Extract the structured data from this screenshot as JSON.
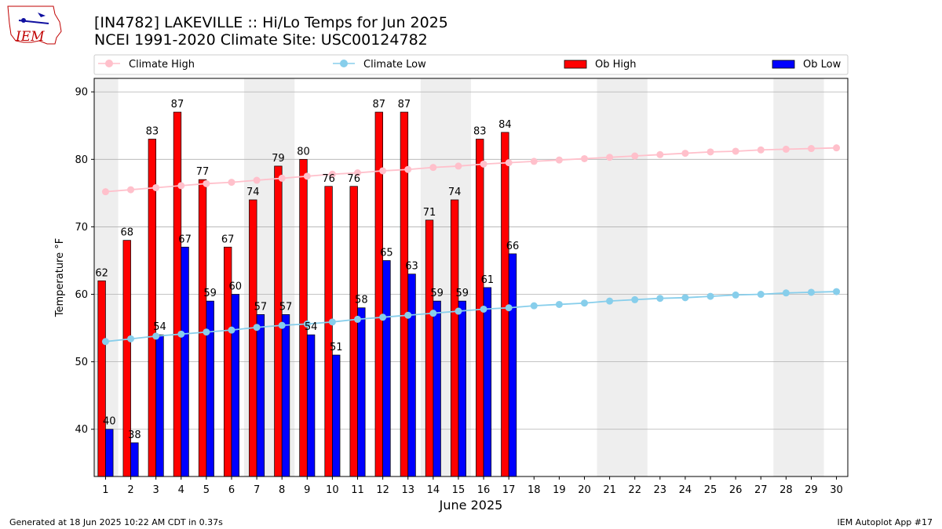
{
  "header": {
    "title_line1": "[IN4782] LAKEVILLE :: Hi/Lo Temps for Jun 2025",
    "title_line2": "NCEI 1991-2020 Climate Site: USC00124782",
    "logo_text": "IEM"
  },
  "footer": {
    "generated": "Generated at 18 Jun 2025 10:22 AM CDT in 0.37s",
    "app": "IEM Autoplot App #17"
  },
  "colors": {
    "ob_high": "#ff0000",
    "ob_low": "#0000ff",
    "climate_high": "#ffc0cb",
    "climate_low": "#87ceeb",
    "weekend_shade": "#eeeeee",
    "grid": "#b0b0b0"
  },
  "chart_data": {
    "type": "bar",
    "xlabel": "June 2025",
    "ylabel": "Temperature °F",
    "ylim": [
      33,
      92
    ],
    "yticks": [
      40,
      50,
      60,
      70,
      80,
      90
    ],
    "grid": "horizontal",
    "legend_position": "top",
    "days": [
      1,
      2,
      3,
      4,
      5,
      6,
      7,
      8,
      9,
      10,
      11,
      12,
      13,
      14,
      15,
      16,
      17,
      18,
      19,
      20,
      21,
      22,
      23,
      24,
      25,
      26,
      27,
      28,
      29,
      30
    ],
    "weekend_ranges": [
      [
        1,
        1
      ],
      [
        7,
        8
      ],
      [
        14,
        15
      ],
      [
        21,
        22
      ],
      [
        28,
        29
      ]
    ],
    "series": [
      {
        "name": "Climate High",
        "kind": "line",
        "values": [
          75.2,
          75.5,
          75.8,
          76.1,
          76.4,
          76.6,
          76.9,
          77.2,
          77.5,
          77.8,
          78.0,
          78.3,
          78.5,
          78.8,
          79.0,
          79.3,
          79.5,
          79.7,
          79.9,
          80.1,
          80.3,
          80.5,
          80.7,
          80.9,
          81.1,
          81.2,
          81.4,
          81.5,
          81.6,
          81.7
        ]
      },
      {
        "name": "Climate Low",
        "kind": "line",
        "values": [
          53.0,
          53.4,
          53.8,
          54.1,
          54.4,
          54.7,
          55.1,
          55.4,
          55.6,
          55.9,
          56.3,
          56.6,
          56.9,
          57.2,
          57.5,
          57.8,
          58.0,
          58.3,
          58.5,
          58.7,
          59.0,
          59.2,
          59.4,
          59.5,
          59.7,
          59.9,
          60.0,
          60.2,
          60.3,
          60.4
        ]
      },
      {
        "name": "Ob High",
        "kind": "bar",
        "values": [
          62,
          68,
          83,
          87,
          77,
          67,
          74,
          79,
          80,
          76,
          76,
          87,
          87,
          71,
          74,
          83,
          84
        ]
      },
      {
        "name": "Ob Low",
        "kind": "bar",
        "values": [
          40,
          38,
          54,
          67,
          59,
          60,
          57,
          57,
          54,
          51,
          58,
          65,
          63,
          59,
          59,
          61,
          66
        ]
      }
    ]
  }
}
